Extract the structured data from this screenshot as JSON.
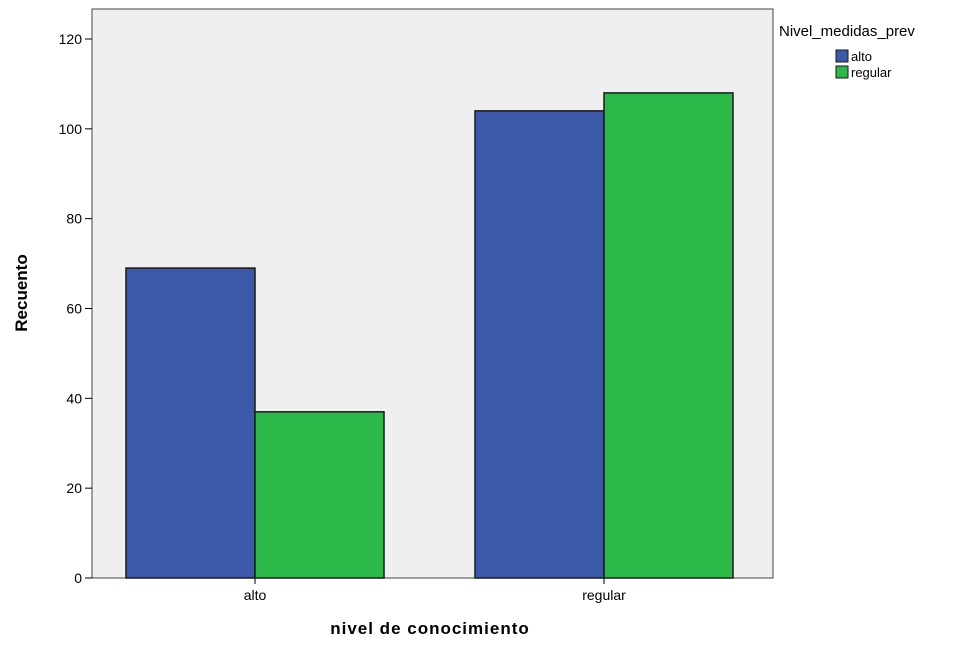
{
  "chart_data": {
    "type": "bar",
    "categories": [
      "alto",
      "regular"
    ],
    "series": [
      {
        "name": "alto",
        "values": [
          69,
          104
        ],
        "color": "#3c58a9"
      },
      {
        "name": "regular",
        "values": [
          37,
          108
        ],
        "color": "#2db84a"
      }
    ],
    "xlabel": "nivel de conocimiento",
    "ylabel": "Recuento",
    "ylim": [
      0,
      120
    ],
    "yticks": [
      0,
      20,
      40,
      60,
      80,
      100,
      120
    ],
    "legend": {
      "title": "Nivel_medidas_prev",
      "placement": "right"
    },
    "grid": false,
    "plot_background": "#efefef"
  }
}
